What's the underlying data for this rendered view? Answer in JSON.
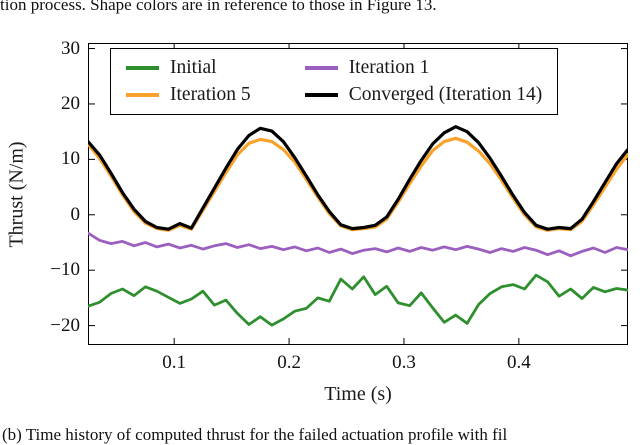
{
  "captions": {
    "top": "tion process. Shape colors are in reference to those in Figure 13.",
    "bottom": "(b) Time history of computed thrust for the failed actuation profile with fil"
  },
  "chart_data": {
    "type": "line",
    "title": "",
    "xlabel": "Time (s)",
    "ylabel": "Thrust (N/m)",
    "xlim": [
      0.025,
      0.495
    ],
    "ylim": [
      -23.5,
      31
    ],
    "grid": false,
    "legend_position": "top-inside",
    "xticks": {
      "values": [
        0.1,
        0.2,
        0.3,
        0.4
      ],
      "labels": [
        "0.1",
        "0.2",
        "0.3",
        "0.4"
      ]
    },
    "yticks": {
      "values": [
        -20,
        -10,
        0,
        10,
        20,
        30
      ],
      "labels": [
        "−20",
        "−10",
        "0",
        "10",
        "20",
        "30"
      ]
    },
    "x": [
      0.025,
      0.035,
      0.045,
      0.055,
      0.065,
      0.075,
      0.085,
      0.095,
      0.105,
      0.115,
      0.125,
      0.135,
      0.145,
      0.155,
      0.165,
      0.175,
      0.185,
      0.195,
      0.205,
      0.215,
      0.225,
      0.235,
      0.245,
      0.255,
      0.265,
      0.275,
      0.285,
      0.295,
      0.305,
      0.315,
      0.325,
      0.335,
      0.345,
      0.355,
      0.365,
      0.375,
      0.385,
      0.395,
      0.405,
      0.415,
      0.425,
      0.435,
      0.445,
      0.455,
      0.465,
      0.475,
      0.485,
      0.495
    ],
    "series": [
      {
        "name": "Initial",
        "color": "#2e8f2e",
        "width": 2.8,
        "values": [
          -16.5,
          -15.8,
          -14.2,
          -13.4,
          -14.6,
          -13.0,
          -13.8,
          -14.9,
          -16.0,
          -15.2,
          -13.8,
          -16.3,
          -15.4,
          -17.8,
          -19.8,
          -18.4,
          -19.9,
          -18.8,
          -17.4,
          -16.9,
          -15.0,
          -15.6,
          -11.6,
          -13.4,
          -11.2,
          -14.4,
          -12.9,
          -15.9,
          -16.4,
          -14.1,
          -16.8,
          -19.4,
          -18.1,
          -19.6,
          -16.2,
          -14.2,
          -13.0,
          -12.6,
          -13.4,
          -10.9,
          -12.1,
          -14.7,
          -13.4,
          -15.1,
          -13.1,
          -13.9,
          -13.3,
          -13.6
        ]
      },
      {
        "name": "Iteration 5",
        "color": "#f9a22b",
        "width": 3.2,
        "values": [
          12.8,
          10.2,
          7.0,
          3.6,
          0.6,
          -1.5,
          -2.5,
          -2.8,
          -1.9,
          -2.6,
          0.8,
          4.2,
          7.6,
          10.8,
          12.9,
          13.6,
          13.2,
          11.8,
          9.5,
          6.4,
          3.2,
          0.2,
          -2.0,
          -2.7,
          -2.5,
          -2.2,
          -0.8,
          2.3,
          5.6,
          8.8,
          11.6,
          13.2,
          13.8,
          13.1,
          11.5,
          9.2,
          6.2,
          3.0,
          0.0,
          -2.2,
          -2.8,
          -2.5,
          -2.7,
          -1.2,
          1.8,
          5.0,
          8.2,
          10.9
        ]
      },
      {
        "name": "Iteration 1",
        "color": "#9b5fc0",
        "width": 2.8,
        "values": [
          -3.3,
          -4.6,
          -5.2,
          -4.8,
          -5.6,
          -5.0,
          -5.8,
          -5.3,
          -6.0,
          -5.5,
          -6.2,
          -5.6,
          -5.2,
          -5.9,
          -5.4,
          -6.1,
          -5.7,
          -6.3,
          -5.8,
          -6.5,
          -6.0,
          -6.8,
          -6.2,
          -7.0,
          -6.4,
          -6.1,
          -6.7,
          -6.0,
          -6.6,
          -5.9,
          -6.4,
          -5.8,
          -6.3,
          -5.7,
          -6.2,
          -6.8,
          -6.1,
          -6.6,
          -5.9,
          -6.4,
          -7.2,
          -6.5,
          -7.4,
          -6.6,
          -6.0,
          -6.8,
          -5.9,
          -6.3
        ]
      },
      {
        "name": "Converged (Iteration 14)",
        "color": "#000000",
        "width": 3.2,
        "values": [
          13.2,
          10.8,
          7.5,
          4.0,
          1.0,
          -1.2,
          -2.3,
          -2.6,
          -1.6,
          -2.4,
          1.2,
          4.8,
          8.4,
          11.8,
          14.3,
          15.6,
          15.1,
          13.2,
          10.3,
          7.0,
          3.6,
          0.6,
          -1.8,
          -2.5,
          -2.3,
          -1.9,
          -0.4,
          2.8,
          6.4,
          9.8,
          12.8,
          14.8,
          15.9,
          15.0,
          13.0,
          10.2,
          6.9,
          3.5,
          0.4,
          -1.9,
          -2.6,
          -2.3,
          -2.5,
          -0.8,
          2.4,
          5.8,
          9.2,
          11.8
        ]
      }
    ],
    "legend": [
      {
        "label": "Initial",
        "color": "#2e8f2e"
      },
      {
        "label": "Iteration 1",
        "color": "#9b5fc0"
      },
      {
        "label": "Iteration 5",
        "color": "#f9a22b"
      },
      {
        "label": "Converged (Iteration 14)",
        "color": "#000000"
      }
    ]
  }
}
